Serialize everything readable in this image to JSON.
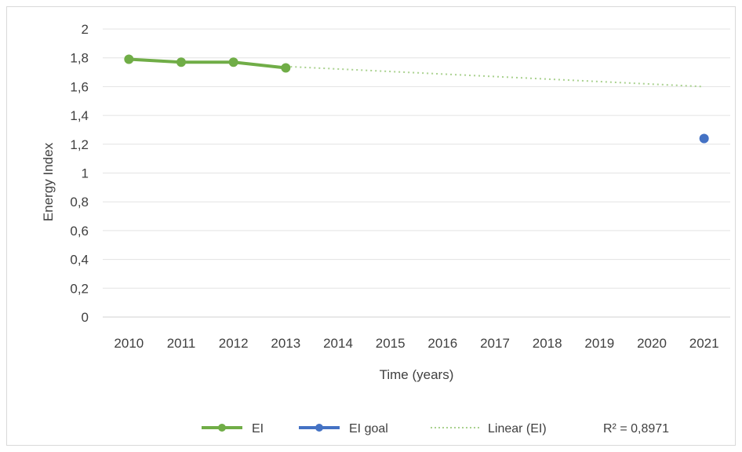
{
  "chart_data": {
    "type": "line",
    "title": "",
    "xlabel": "Time (years)",
    "ylabel": "Energy Index",
    "categories": [
      "2010",
      "2011",
      "2012",
      "2013",
      "2014",
      "2015",
      "2016",
      "2017",
      "2018",
      "2019",
      "2020",
      "2021"
    ],
    "y_ticks": [
      "0",
      "0,2",
      "0,4",
      "0,6",
      "0,8",
      "1",
      "1,2",
      "1,4",
      "1,6",
      "1,8",
      "2"
    ],
    "ylim": [
      0,
      2
    ],
    "grid": true,
    "legend_position": "bottom",
    "series": [
      {
        "name": "EI",
        "color": "#70ad47",
        "marker": "circle",
        "x": [
          "2010",
          "2011",
          "2012",
          "2013"
        ],
        "values": [
          1.79,
          1.77,
          1.77,
          1.73
        ]
      },
      {
        "name": "EI goal",
        "color": "#4472c4",
        "marker": "circle",
        "x": [
          "2021"
        ],
        "values": [
          1.24
        ]
      }
    ],
    "trendline": {
      "name": "Linear (EI)",
      "color": "#a9d18e",
      "style": "dotted",
      "x_start": "2013",
      "x_end": "2021",
      "y_start": 1.74,
      "y_end": 1.6
    },
    "annotation": "R² = 0,8971"
  }
}
